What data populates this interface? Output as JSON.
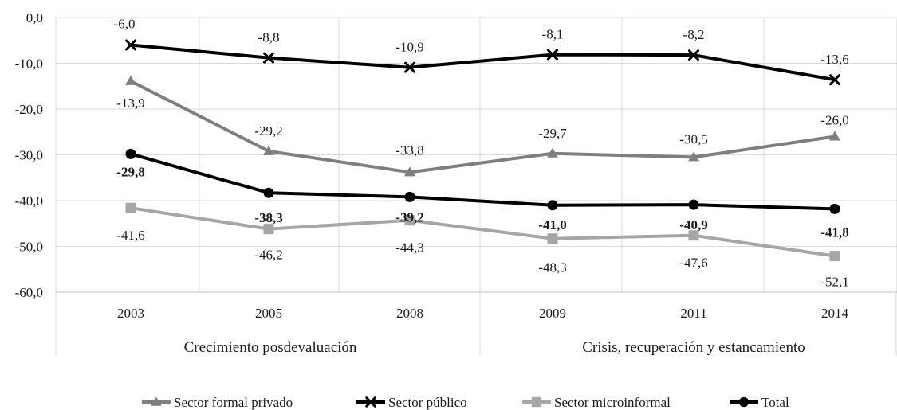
{
  "chart_data": {
    "type": "line",
    "categories": [
      "2003",
      "2005",
      "2008",
      "2009",
      "2011",
      "2014"
    ],
    "category_groups": [
      {
        "label": "Crecimiento posdevaluación",
        "span": [
          "2003",
          "2008"
        ]
      },
      {
        "label": "Crisis, recuperación y estancamiento",
        "span": [
          "2009",
          "2014"
        ]
      }
    ],
    "ylim": [
      -60,
      0
    ],
    "ytick_labels": [
      "0,0",
      "-10,0",
      "-20,0",
      "-30,0",
      "-40,0",
      "-50,0",
      "-60,0"
    ],
    "grid": "vertical",
    "legend_position": "bottom",
    "series": [
      {
        "name": "Sector formal privado",
        "marker": "triangle",
        "color": "#7f7f7f",
        "values": [
          -13.9,
          -29.2,
          -33.8,
          -29.7,
          -30.5,
          -26.0
        ],
        "labels": [
          "-13,9",
          "-29,2",
          "-33,8",
          "-29,7",
          "-30,5",
          "-26,0"
        ]
      },
      {
        "name": "Sector público",
        "marker": "x",
        "color": "#000000",
        "values": [
          -6.0,
          -8.8,
          -10.9,
          -8.1,
          -8.2,
          -13.6
        ],
        "labels": [
          "-6,0",
          "-8,8",
          "-10,9",
          "-8,1",
          "-8,2",
          "-13,6"
        ]
      },
      {
        "name": "Sector microinformal",
        "marker": "square",
        "color": "#a6a6a6",
        "values": [
          -41.6,
          -46.2,
          -44.3,
          -48.3,
          -47.6,
          -52.1
        ],
        "labels": [
          "-41,6",
          "-46,2",
          "-44,3",
          "-48,3",
          "-47,6",
          "-52,1"
        ]
      },
      {
        "name": "Total",
        "marker": "circle",
        "color": "#000000",
        "labels_bold": true,
        "values": [
          -29.8,
          -38.3,
          -39.2,
          -41.0,
          -40.9,
          -41.8
        ],
        "labels": [
          "-29,8",
          "-38,3",
          "-39,2",
          "-41,0",
          "-40,9",
          "-41,8"
        ]
      }
    ]
  }
}
